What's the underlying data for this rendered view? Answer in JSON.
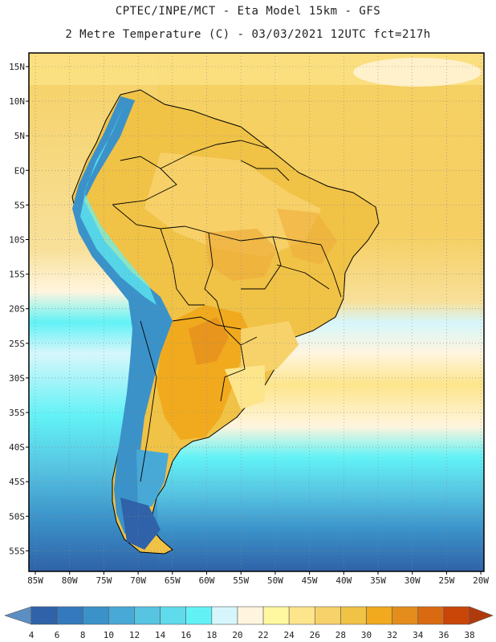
{
  "header": {
    "line1": "CPTEC/INPE/MCT -  Eta Model 15km - GFS",
    "line2": "2 Metre Temperature (C) - 03/03/2021 12UTC fct=217h"
  },
  "map": {
    "lat_labels": [
      "15N",
      "10N",
      "5N",
      "EQ",
      "5S",
      "10S",
      "15S",
      "20S",
      "25S",
      "30S",
      "35S",
      "40S",
      "45S",
      "50S",
      "55S"
    ],
    "lon_labels": [
      "85W",
      "80W",
      "75W",
      "70W",
      "65W",
      "60W",
      "55W",
      "50W",
      "45W",
      "40W",
      "35W",
      "30W",
      "25W",
      "20W"
    ]
  },
  "legend": {
    "values": [
      "4",
      "6",
      "8",
      "10",
      "12",
      "14",
      "16",
      "18",
      "20",
      "22",
      "24",
      "26",
      "28",
      "30",
      "32",
      "34",
      "36",
      "38"
    ],
    "colors": [
      "#2f62a8",
      "#3479bd",
      "#3b92c9",
      "#49a9d6",
      "#57c4e2",
      "#5fdbec",
      "#62f2f6",
      "#d6f6fb",
      "#fff5de",
      "#fff8a0",
      "#fde58c",
      "#f7d26a",
      "#f0c246",
      "#f1aa1e",
      "#e48c1c",
      "#da6a12",
      "#c94508"
    ],
    "low_color": "#5b8fc4",
    "high_color": "#b03a0c"
  }
}
